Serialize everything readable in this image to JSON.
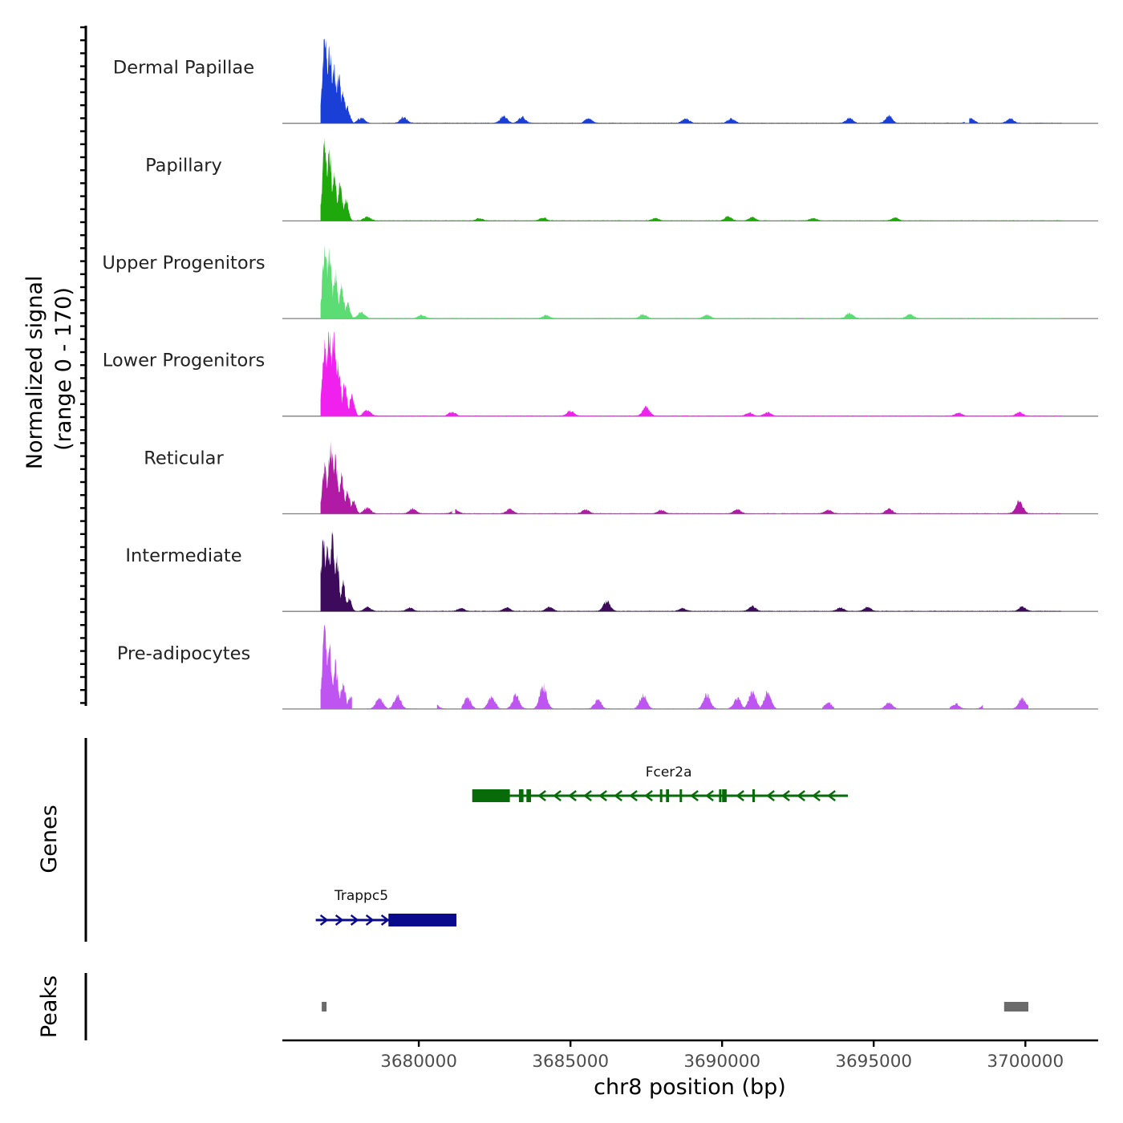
{
  "chart_data": {
    "type": "area",
    "ylabel_line1": "Normalized signal",
    "ylabel_line2": "(range 0 - 170)",
    "ylim": [
      0,
      170
    ],
    "xlabel": "chr8 position (bp)",
    "xlim": [
      3675500,
      3702400
    ],
    "x_ticks": [
      3680000,
      3685000,
      3690000,
      3695000,
      3700000
    ],
    "x_tick_labels": [
      "3680000",
      "3685000",
      "3690000",
      "3695000",
      "3700000"
    ],
    "tracks": [
      {
        "name": "Dermal Papillae",
        "color": "#1a3fd6",
        "peaks": [
          [
            3676900,
            170
          ],
          [
            3677050,
            150
          ],
          [
            3677200,
            120
          ],
          [
            3677350,
            95
          ],
          [
            3677500,
            60
          ],
          [
            3677650,
            30
          ]
        ],
        "noise": [
          [
            3678100,
            10
          ],
          [
            3679500,
            12
          ],
          [
            3682800,
            14
          ],
          [
            3683400,
            12
          ],
          [
            3685600,
            10
          ],
          [
            3688800,
            9
          ],
          [
            3690300,
            9
          ],
          [
            3694200,
            10
          ],
          [
            3695500,
            14
          ],
          [
            3698200,
            10
          ],
          [
            3699500,
            9
          ]
        ],
        "segments": [
          [
            3676760,
            3678400
          ],
          [
            3678800,
            3698000
          ],
          [
            3698150,
            3701200
          ]
        ]
      },
      {
        "name": "Papillary",
        "color": "#1fa80b",
        "peaks": [
          [
            3676900,
            150
          ],
          [
            3677050,
            130
          ],
          [
            3677200,
            95
          ],
          [
            3677400,
            70
          ],
          [
            3677600,
            40
          ]
        ],
        "noise": [
          [
            3678300,
            8
          ],
          [
            3682000,
            5
          ],
          [
            3684100,
            6
          ],
          [
            3687800,
            5
          ],
          [
            3690200,
            8
          ],
          [
            3691000,
            7
          ],
          [
            3693000,
            5
          ],
          [
            3695700,
            6
          ]
        ],
        "segments": [
          [
            3676760,
            3687000
          ],
          [
            3687100,
            3701200
          ]
        ]
      },
      {
        "name": "Upper Progenitors",
        "color": "#5cdd74",
        "peaks": [
          [
            3676900,
            135
          ],
          [
            3677050,
            120
          ],
          [
            3677250,
            95
          ],
          [
            3677450,
            65
          ],
          [
            3677650,
            30
          ]
        ],
        "noise": [
          [
            3678100,
            12
          ],
          [
            3680100,
            6
          ],
          [
            3684200,
            6
          ],
          [
            3687400,
            8
          ],
          [
            3689500,
            7
          ],
          [
            3694200,
            10
          ],
          [
            3696200,
            8
          ]
        ],
        "segments": [
          [
            3676760,
            3692500
          ],
          [
            3692700,
            3701200
          ]
        ]
      },
      {
        "name": "Lower Progenitors",
        "color": "#f020ee",
        "peaks": [
          [
            3676900,
            145
          ],
          [
            3677050,
            170
          ],
          [
            3677200,
            150
          ],
          [
            3677350,
            95
          ],
          [
            3677550,
            60
          ],
          [
            3677800,
            40
          ]
        ],
        "noise": [
          [
            3678300,
            12
          ],
          [
            3681100,
            8
          ],
          [
            3685000,
            10
          ],
          [
            3687500,
            18
          ],
          [
            3690900,
            6
          ],
          [
            3691500,
            7
          ],
          [
            3697800,
            6
          ],
          [
            3699800,
            7
          ]
        ],
        "segments": [
          [
            3676760,
            3701200
          ]
        ]
      },
      {
        "name": "Reticular",
        "color": "#b01aa5",
        "peaks": [
          [
            3676900,
            100
          ],
          [
            3677100,
            140
          ],
          [
            3677250,
            100
          ],
          [
            3677450,
            70
          ],
          [
            3677650,
            45
          ],
          [
            3677850,
            25
          ]
        ],
        "noise": [
          [
            3678300,
            12
          ],
          [
            3679800,
            10
          ],
          [
            3681200,
            8
          ],
          [
            3683000,
            9
          ],
          [
            3685500,
            8
          ],
          [
            3688000,
            7
          ],
          [
            3690500,
            8
          ],
          [
            3693500,
            7
          ],
          [
            3695500,
            9
          ],
          [
            3699800,
            25
          ]
        ],
        "segments": [
          [
            3676760,
            3681100
          ],
          [
            3681200,
            3691800
          ],
          [
            3691950,
            3701200
          ]
        ]
      },
      {
        "name": "Intermediate",
        "color": "#3d0a5c",
        "peaks": [
          [
            3676850,
            130
          ],
          [
            3677000,
            140
          ],
          [
            3677150,
            150
          ],
          [
            3677300,
            95
          ],
          [
            3677500,
            55
          ],
          [
            3677700,
            25
          ]
        ],
        "noise": [
          [
            3678300,
            8
          ],
          [
            3679700,
            7
          ],
          [
            3681400,
            6
          ],
          [
            3682900,
            7
          ],
          [
            3684300,
            8
          ],
          [
            3686200,
            20
          ],
          [
            3688700,
            6
          ],
          [
            3691000,
            10
          ],
          [
            3693900,
            7
          ],
          [
            3694800,
            8
          ],
          [
            3699900,
            9
          ]
        ],
        "segments": [
          [
            3676760,
            3701200
          ]
        ]
      },
      {
        "name": "Pre-adipocytes",
        "color": "#bf55f0",
        "peaks": [
          [
            3676900,
            165
          ],
          [
            3677050,
            125
          ],
          [
            3677250,
            85
          ],
          [
            3677500,
            50
          ],
          [
            3677750,
            25
          ]
        ],
        "noise": [
          [
            3678700,
            22
          ],
          [
            3679300,
            25
          ],
          [
            3680500,
            14
          ],
          [
            3681600,
            22
          ],
          [
            3682400,
            24
          ],
          [
            3683200,
            28
          ],
          [
            3684100,
            45
          ],
          [
            3685900,
            18
          ],
          [
            3687400,
            28
          ],
          [
            3689500,
            28
          ],
          [
            3690500,
            22
          ],
          [
            3691000,
            35
          ],
          [
            3691500,
            32
          ],
          [
            3693500,
            12
          ],
          [
            3695500,
            12
          ],
          [
            3697700,
            10
          ],
          [
            3698700,
            12
          ],
          [
            3699900,
            22
          ]
        ],
        "segments": [
          [
            3676760,
            3677800
          ],
          [
            3678200,
            3680000
          ],
          [
            3680600,
            3681000
          ],
          [
            3681400,
            3684700
          ],
          [
            3685000,
            3686800
          ],
          [
            3687100,
            3688500
          ],
          [
            3688800,
            3691800
          ],
          [
            3693300,
            3693700
          ],
          [
            3695200,
            3695800
          ],
          [
            3697500,
            3698600
          ],
          [
            3699200,
            3700100
          ]
        ]
      }
    ],
    "genes_label": "Genes",
    "genes": [
      {
        "name": "Fcer2a",
        "color": "#086b0a",
        "start": 3681800,
        "end": 3694150,
        "strand": "-",
        "row": 0,
        "exons": [
          [
            3681800,
            3683000
          ],
          [
            3683300,
            3683450
          ],
          [
            3683550,
            3683700
          ],
          [
            3687950,
            3688000
          ],
          [
            3688150,
            3688250
          ],
          [
            3688600,
            3688650
          ],
          [
            3689900,
            3689950
          ],
          [
            3690000,
            3690150
          ],
          [
            3691000,
            3691050
          ]
        ]
      },
      {
        "name": "Trappc5",
        "color": "#0a0a8c",
        "start": 3676600,
        "end": 3681200,
        "strand": "+",
        "row": 1,
        "exons": [
          [
            3679000,
            3681200
          ]
        ]
      }
    ],
    "peaks_label": "Peaks",
    "peak_regions": [
      [
        3676800,
        3676950
      ],
      [
        3699300,
        3700100
      ]
    ]
  }
}
